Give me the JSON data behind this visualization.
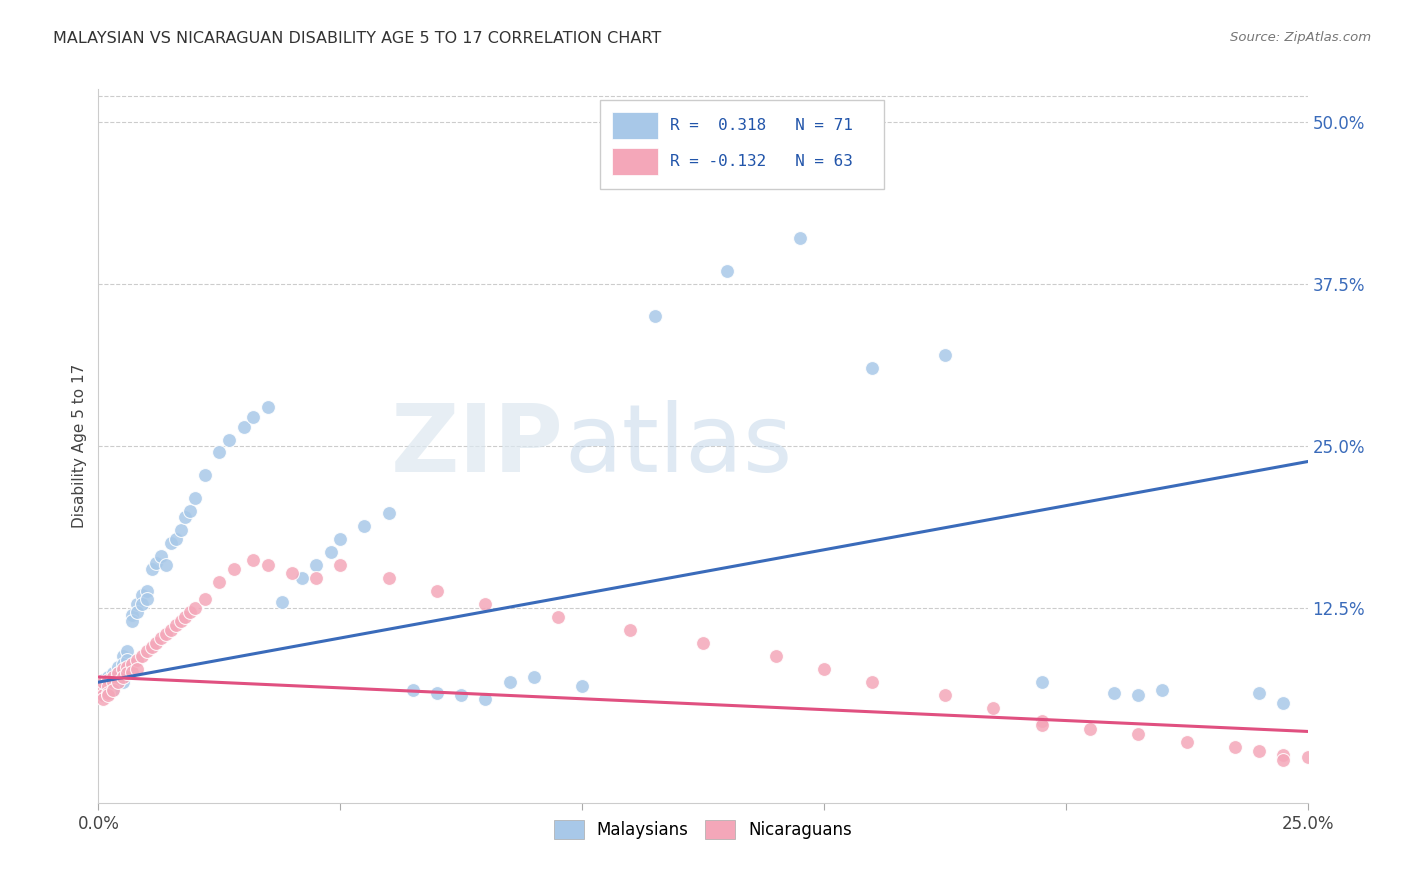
{
  "title": "MALAYSIAN VS NICARAGUAN DISABILITY AGE 5 TO 17 CORRELATION CHART",
  "source": "Source: ZipAtlas.com",
  "ylabel_label": "Disability Age 5 to 17",
  "ylabel_ticks_right": [
    "50.0%",
    "37.5%",
    "25.0%",
    "12.5%"
  ],
  "ylabel_ticks_right_vals": [
    0.5,
    0.375,
    0.25,
    0.125
  ],
  "xmin": 0.0,
  "xmax": 0.25,
  "ymin": -0.025,
  "ymax": 0.525,
  "blue_color": "#a8c8e8",
  "pink_color": "#f4a7b9",
  "blue_line_color": "#3a6bba",
  "pink_line_color": "#e05080",
  "grid_color": "#cccccc",
  "background_color": "#ffffff",
  "blue_trend_x": [
    0.0,
    0.25
  ],
  "blue_trend_y": [
    0.068,
    0.238
  ],
  "pink_trend_x": [
    0.0,
    0.25
  ],
  "pink_trend_y": [
    0.072,
    0.03
  ],
  "malaysian_x": [
    0.001,
    0.001,
    0.001,
    0.001,
    0.001,
    0.002,
    0.002,
    0.002,
    0.002,
    0.003,
    0.003,
    0.003,
    0.004,
    0.004,
    0.004,
    0.005,
    0.005,
    0.005,
    0.005,
    0.006,
    0.006,
    0.006,
    0.007,
    0.007,
    0.008,
    0.008,
    0.009,
    0.009,
    0.01,
    0.01,
    0.011,
    0.012,
    0.013,
    0.014,
    0.015,
    0.016,
    0.017,
    0.018,
    0.019,
    0.02,
    0.022,
    0.025,
    0.027,
    0.03,
    0.032,
    0.035,
    0.038,
    0.042,
    0.045,
    0.048,
    0.05,
    0.055,
    0.06,
    0.065,
    0.07,
    0.075,
    0.08,
    0.085,
    0.09,
    0.1,
    0.115,
    0.13,
    0.145,
    0.16,
    0.175,
    0.195,
    0.21,
    0.215,
    0.22,
    0.24,
    0.245
  ],
  "malaysian_y": [
    0.068,
    0.07,
    0.065,
    0.06,
    0.058,
    0.072,
    0.068,
    0.064,
    0.06,
    0.075,
    0.07,
    0.062,
    0.08,
    0.075,
    0.068,
    0.088,
    0.082,
    0.075,
    0.068,
    0.092,
    0.085,
    0.078,
    0.12,
    0.115,
    0.128,
    0.122,
    0.135,
    0.128,
    0.138,
    0.132,
    0.155,
    0.16,
    0.165,
    0.158,
    0.175,
    0.178,
    0.185,
    0.195,
    0.2,
    0.21,
    0.228,
    0.245,
    0.255,
    0.265,
    0.272,
    0.28,
    0.13,
    0.148,
    0.158,
    0.168,
    0.178,
    0.188,
    0.198,
    0.062,
    0.06,
    0.058,
    0.055,
    0.068,
    0.072,
    0.065,
    0.35,
    0.385,
    0.41,
    0.31,
    0.32,
    0.068,
    0.06,
    0.058,
    0.062,
    0.06,
    0.052
  ],
  "nicaraguan_x": [
    0.001,
    0.001,
    0.001,
    0.001,
    0.001,
    0.002,
    0.002,
    0.002,
    0.002,
    0.003,
    0.003,
    0.003,
    0.004,
    0.004,
    0.005,
    0.005,
    0.006,
    0.006,
    0.007,
    0.007,
    0.008,
    0.008,
    0.009,
    0.01,
    0.011,
    0.012,
    0.013,
    0.014,
    0.015,
    0.016,
    0.017,
    0.018,
    0.019,
    0.02,
    0.022,
    0.025,
    0.028,
    0.032,
    0.035,
    0.04,
    0.045,
    0.05,
    0.06,
    0.07,
    0.08,
    0.095,
    0.11,
    0.125,
    0.14,
    0.15,
    0.16,
    0.175,
    0.185,
    0.195,
    0.205,
    0.215,
    0.225,
    0.235,
    0.24,
    0.245,
    0.25,
    0.195,
    0.245
  ],
  "nicaraguan_y": [
    0.065,
    0.062,
    0.058,
    0.055,
    0.068,
    0.07,
    0.065,
    0.06,
    0.058,
    0.072,
    0.068,
    0.062,
    0.075,
    0.068,
    0.078,
    0.072,
    0.08,
    0.075,
    0.082,
    0.076,
    0.085,
    0.078,
    0.088,
    0.092,
    0.095,
    0.098,
    0.102,
    0.105,
    0.108,
    0.112,
    0.115,
    0.118,
    0.122,
    0.125,
    0.132,
    0.145,
    0.155,
    0.162,
    0.158,
    0.152,
    0.148,
    0.158,
    0.148,
    0.138,
    0.128,
    0.118,
    0.108,
    0.098,
    0.088,
    0.078,
    0.068,
    0.058,
    0.048,
    0.038,
    0.032,
    0.028,
    0.022,
    0.018,
    0.015,
    0.012,
    0.01,
    0.035,
    0.008
  ]
}
